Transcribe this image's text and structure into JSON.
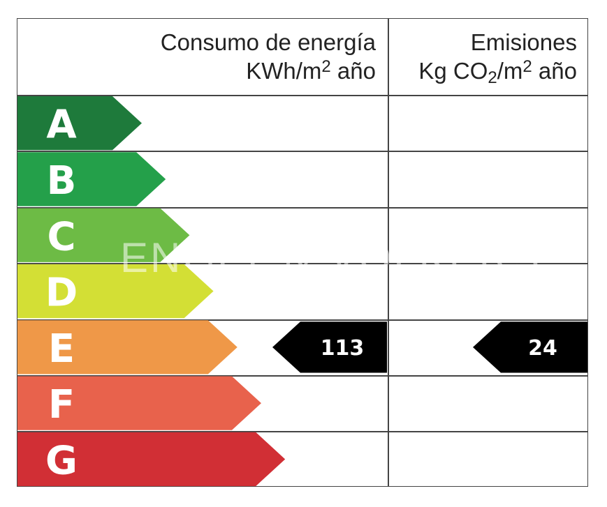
{
  "header": {
    "energy_line1": "Consumo de energía",
    "energy_unit_prefix": "KWh/m",
    "energy_unit_sup": "2",
    "energy_unit_suffix": " año",
    "emissions_line1": "Emisiones",
    "emissions_unit_a": "Kg CO",
    "emissions_unit_sub": "2",
    "emissions_unit_b": "/m",
    "emissions_unit_sup": "2",
    "emissions_unit_suffix": " año"
  },
  "classes": [
    {
      "letter": "A",
      "color": "#1e7a3b"
    },
    {
      "letter": "B",
      "color": "#24a04a"
    },
    {
      "letter": "C",
      "color": "#6dbb45"
    },
    {
      "letter": "D",
      "color": "#d3df35"
    },
    {
      "letter": "E",
      "color": "#ef9848"
    },
    {
      "letter": "F",
      "color": "#e8624c"
    },
    {
      "letter": "G",
      "color": "#d12f35"
    }
  ],
  "rating": {
    "class": "E",
    "energy_value": "113",
    "emissions_value": "24"
  },
  "watermark": "ENGEL & VÖLKERS"
}
